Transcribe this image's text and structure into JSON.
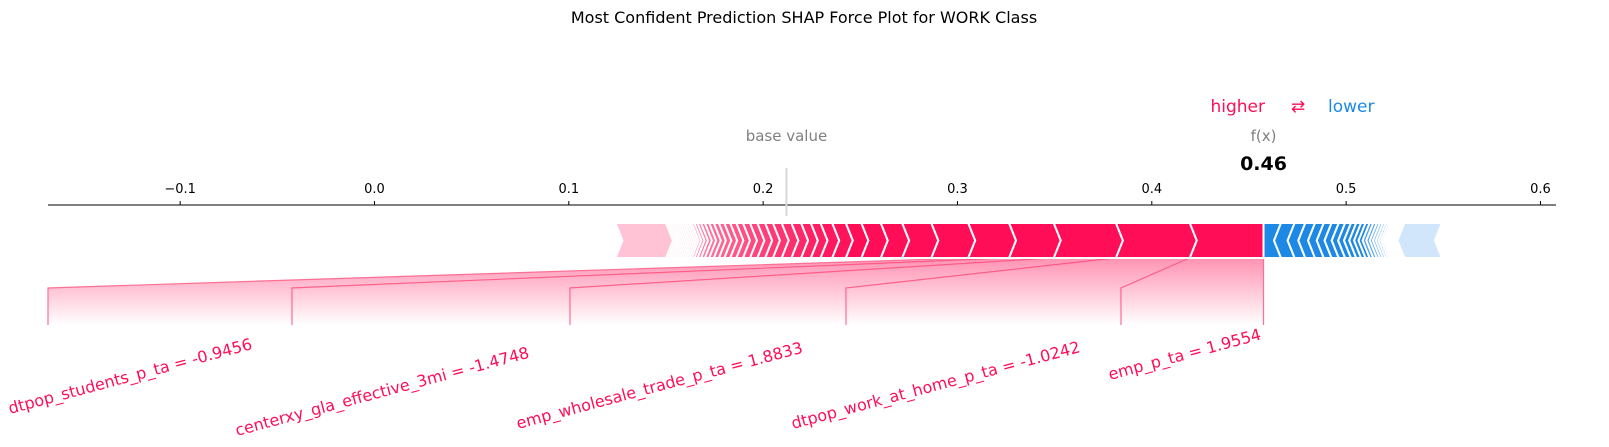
{
  "chart_data": {
    "type": "force",
    "title": "Most Confident Prediction SHAP Force Plot for WORK Class",
    "legend": {
      "higher": "higher",
      "arrow": "⇄",
      "lower": "lower"
    },
    "base_label": "base value",
    "base_value": 0.212,
    "fx_label": "f(x)",
    "fx_value": 0.4575,
    "fx_display": "0.46",
    "xlim": [
      -0.168,
      0.608
    ],
    "ticks": [
      {
        "value": -0.1,
        "label": "−0.1"
      },
      {
        "value": 0.0,
        "label": "0.0"
      },
      {
        "value": 0.1,
        "label": "0.1"
      },
      {
        "value": 0.2,
        "label": "0.2"
      },
      {
        "value": 0.3,
        "label": "0.3"
      },
      {
        "value": 0.4,
        "label": "0.4"
      },
      {
        "value": 0.5,
        "label": "0.5"
      },
      {
        "value": 0.6,
        "label": "0.6"
      }
    ],
    "positive_boundaries": [
      0.4575,
      0.4195,
      0.3815,
      0.3495,
      0.3265,
      0.3055,
      0.2865,
      0.2715,
      0.2605,
      0.2505,
      0.2425,
      0.2355,
      0.2295,
      0.2245,
      0.2195,
      0.2145,
      0.2095,
      0.205,
      0.201,
      0.197,
      0.1932,
      0.1896,
      0.1862,
      0.183,
      0.18,
      0.1772,
      0.1746,
      0.1722,
      0.17,
      0.168,
      0.1662,
      0.1646,
      0.1632,
      0.162,
      0.1608,
      0.1596,
      0.1584,
      0.1572,
      0.156,
      0.1548,
      0.1536,
      0.1524,
      0.1512,
      0.15,
      0.124
    ],
    "negative_boundaries": [
      0.4575,
      0.4665,
      0.4735,
      0.479,
      0.484,
      0.4885,
      0.4925,
      0.4962,
      0.4995,
      0.5025,
      0.5052,
      0.5077,
      0.51,
      0.5121,
      0.514,
      0.5158,
      0.5174,
      0.5189,
      0.5203,
      0.5216,
      0.5228,
      0.5239,
      0.525,
      0.526,
      0.527,
      0.528,
      0.529,
      0.53,
      0.5493
    ],
    "features": [
      {
        "label": "emp_p_ta = 1.9554",
        "from": 0.4195,
        "to": 0.4575
      },
      {
        "label": "dtpop_work_at_home_p_ta = -1.0242",
        "from": 0.3815,
        "to": 0.4195
      },
      {
        "label": "emp_wholesale_trade_p_ta = 1.8833",
        "from": 0.3495,
        "to": 0.3815
      },
      {
        "label": "centerxy_gla_effective_3mi = -1.4748",
        "from": 0.3265,
        "to": 0.3495
      },
      {
        "label": "dtpop_students_p_ta = -0.9456",
        "from": 0.3055,
        "to": 0.3265
      }
    ],
    "colors": {
      "positive": "#ff0d57",
      "negative": "#1e88e5",
      "positive_light": "#ffc3d5",
      "negative_light": "#d1e6fa"
    }
  }
}
